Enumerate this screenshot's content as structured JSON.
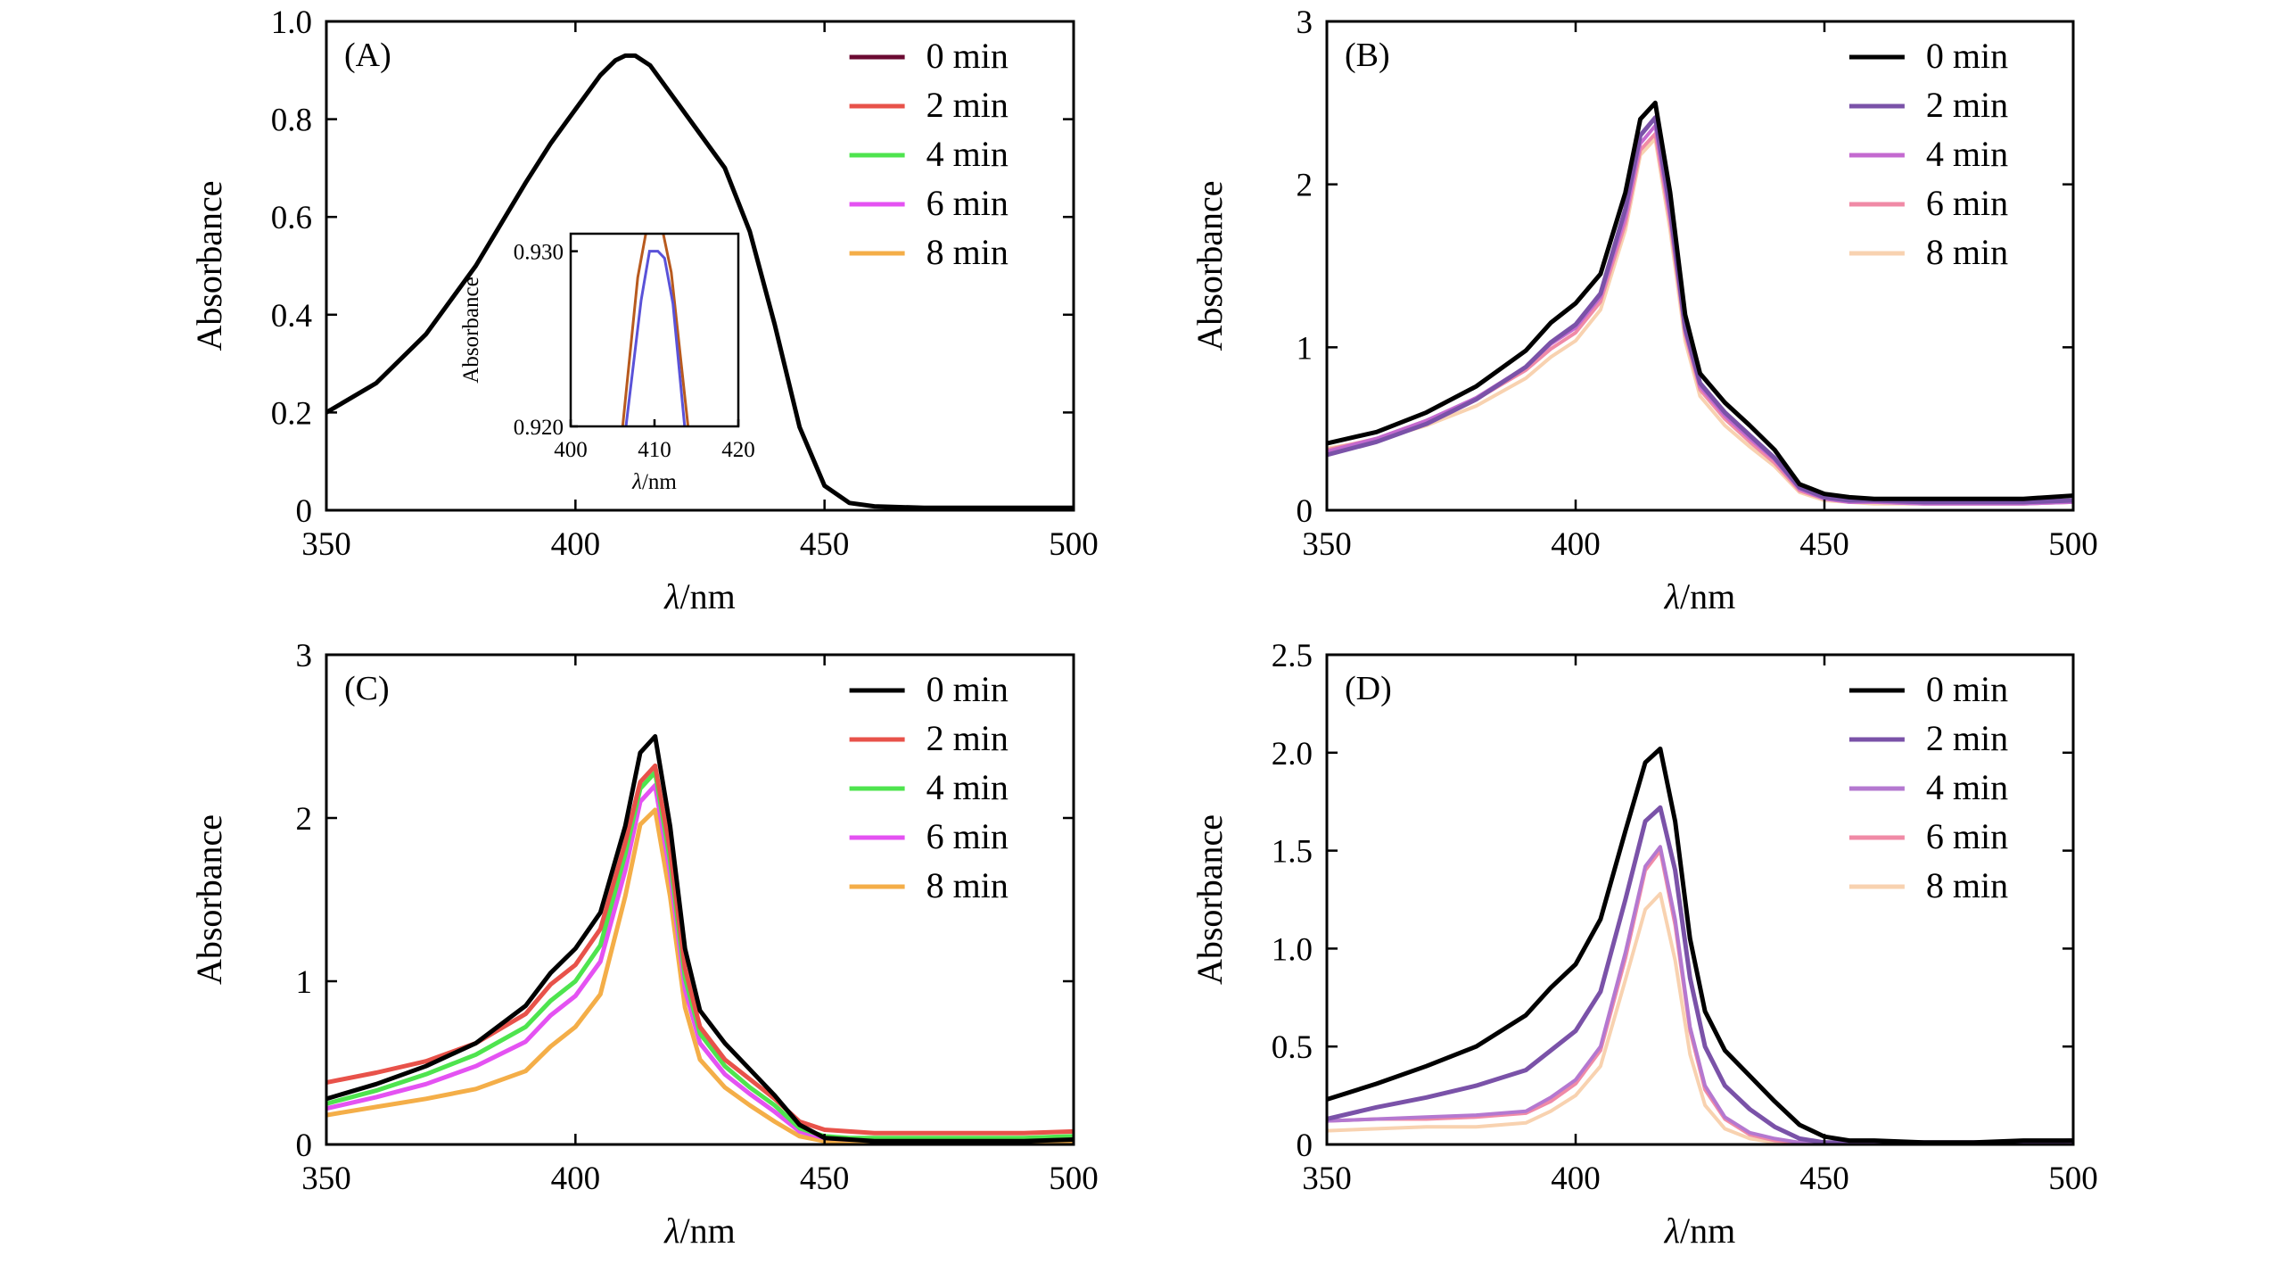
{
  "chart_data": [
    {
      "panel": "(A)",
      "type": "line",
      "xlabel_italic": "λ",
      "xlabel_unit": "/nm",
      "ylabel": "Absorbance",
      "xlim": [
        350,
        500
      ],
      "ylim": [
        0,
        1.0
      ],
      "xticks": [
        350,
        400,
        450,
        500
      ],
      "xtick_labels": [
        "350",
        "400",
        "450",
        "500"
      ],
      "yticks": [
        0,
        0.2,
        0.4,
        0.6,
        0.8,
        1.0
      ],
      "ytick_labels": [
        "0",
        "0.2",
        "0.4",
        "0.6",
        "0.8",
        "1.0"
      ],
      "legend_position": "top-right",
      "series": [
        {
          "name": "0 min",
          "color": "#6b0a32",
          "width": 5
        },
        {
          "name": "2 min",
          "color": "#e8524a",
          "width": 5
        },
        {
          "name": "4 min",
          "color": "#4ee44e",
          "width": 5
        },
        {
          "name": "6 min",
          "color": "#e452f2",
          "width": 5
        },
        {
          "name": "8 min",
          "color": "#f4ae48",
          "width": 5
        }
      ],
      "plotted_series_color": "#000000",
      "x": [
        350,
        360,
        370,
        380,
        390,
        395,
        400,
        405,
        408,
        410,
        412,
        415,
        420,
        425,
        430,
        435,
        440,
        445,
        450,
        455,
        460,
        470,
        480,
        490,
        500
      ],
      "y": [
        0.2,
        0.26,
        0.36,
        0.5,
        0.67,
        0.75,
        0.82,
        0.89,
        0.92,
        0.93,
        0.93,
        0.91,
        0.84,
        0.77,
        0.7,
        0.57,
        0.38,
        0.17,
        0.05,
        0.015,
        0.008,
        0.005,
        0.005,
        0.005,
        0.005
      ],
      "inset": {
        "xlabel_italic": "λ",
        "xlabel_unit": "/nm",
        "ylabel": "Absorbance",
        "xlim": [
          400,
          420
        ],
        "ylim": [
          0.92,
          0.931
        ],
        "xticks": [
          400,
          410,
          420
        ],
        "xtick_labels": [
          "400",
          "410",
          "420"
        ],
        "yticks": [
          0.92,
          0.93
        ],
        "ytick_labels": [
          "0.920",
          "0.930"
        ],
        "series": [
          {
            "name": "8 min",
            "color": "#b85a1e",
            "x": [
              406.2,
              408.0,
              409.0,
              410.0,
              411.0,
              412.0,
              414.0
            ],
            "y": [
              0.92,
              0.9285,
              0.9311,
              0.9311,
              0.9311,
              0.9288,
              0.92
            ]
          },
          {
            "name": "6 min",
            "color": "#5a52d8",
            "x": [
              406.6,
              408.4,
              409.4,
              410.4,
              411.2,
              412.2,
              413.6
            ],
            "y": [
              0.92,
              0.9272,
              0.93,
              0.93,
              0.9296,
              0.927,
              0.92
            ]
          }
        ]
      }
    },
    {
      "panel": "(B)",
      "type": "line",
      "xlabel_italic": "λ",
      "xlabel_unit": "/nm",
      "ylabel": "Absorbance",
      "xlim": [
        350,
        500
      ],
      "ylim": [
        0,
        3
      ],
      "xticks": [
        350,
        400,
        450,
        500
      ],
      "xtick_labels": [
        "350",
        "400",
        "450",
        "500"
      ],
      "yticks": [
        0,
        1,
        2,
        3
      ],
      "ytick_labels": [
        "0",
        "1",
        "2",
        "3"
      ],
      "legend_position": "top-right",
      "x": [
        350,
        360,
        370,
        380,
        390,
        395,
        400,
        405,
        410,
        413,
        416,
        419,
        422,
        425,
        430,
        435,
        440,
        445,
        450,
        455,
        460,
        470,
        480,
        490,
        500
      ],
      "series": [
        {
          "name": "0 min",
          "color": "#000000",
          "width": 5,
          "y": [
            0.41,
            0.48,
            0.6,
            0.76,
            0.98,
            1.15,
            1.27,
            1.45,
            1.95,
            2.4,
            2.5,
            1.95,
            1.2,
            0.84,
            0.66,
            0.52,
            0.37,
            0.16,
            0.1,
            0.08,
            0.07,
            0.07,
            0.07,
            0.07,
            0.09
          ]
        },
        {
          "name": "2 min",
          "color": "#7a52a8",
          "width": 5,
          "y": [
            0.34,
            0.42,
            0.53,
            0.68,
            0.88,
            1.03,
            1.14,
            1.33,
            1.85,
            2.3,
            2.41,
            1.85,
            1.12,
            0.78,
            0.6,
            0.46,
            0.32,
            0.14,
            0.08,
            0.06,
            0.06,
            0.05,
            0.05,
            0.05,
            0.06
          ]
        },
        {
          "name": "4 min",
          "color": "#c46ad0",
          "width": 4,
          "y": [
            0.36,
            0.44,
            0.55,
            0.69,
            0.88,
            1.02,
            1.12,
            1.31,
            1.8,
            2.25,
            2.36,
            1.8,
            1.1,
            0.76,
            0.58,
            0.44,
            0.31,
            0.13,
            0.07,
            0.05,
            0.05,
            0.04,
            0.04,
            0.04,
            0.05
          ]
        },
        {
          "name": "6 min",
          "color": "#f08aa6",
          "width": 4,
          "y": [
            0.37,
            0.44,
            0.55,
            0.68,
            0.86,
            0.99,
            1.09,
            1.28,
            1.76,
            2.21,
            2.31,
            1.77,
            1.08,
            0.74,
            0.56,
            0.42,
            0.29,
            0.12,
            0.07,
            0.05,
            0.05,
            0.04,
            0.04,
            0.04,
            0.05
          ]
        },
        {
          "name": "8 min",
          "color": "#f8d2b0",
          "width": 4,
          "y": [
            0.38,
            0.43,
            0.52,
            0.64,
            0.81,
            0.94,
            1.04,
            1.23,
            1.72,
            2.18,
            2.28,
            1.72,
            1.04,
            0.7,
            0.52,
            0.39,
            0.27,
            0.11,
            0.06,
            0.05,
            0.04,
            0.04,
            0.04,
            0.04,
            0.05
          ]
        }
      ]
    },
    {
      "panel": "(C)",
      "type": "line",
      "xlabel_italic": "λ",
      "xlabel_unit": "/nm",
      "ylabel": "Absorbance",
      "xlim": [
        350,
        500
      ],
      "ylim": [
        0,
        3
      ],
      "xticks": [
        350,
        400,
        450,
        500
      ],
      "xtick_labels": [
        "350",
        "400",
        "450",
        "500"
      ],
      "yticks": [
        0,
        1,
        2,
        3
      ],
      "ytick_labels": [
        "0",
        "1",
        "2",
        "3"
      ],
      "legend_position": "top-right",
      "x": [
        350,
        360,
        370,
        380,
        390,
        395,
        400,
        405,
        410,
        413,
        416,
        419,
        422,
        425,
        430,
        435,
        440,
        445,
        450,
        455,
        460,
        470,
        480,
        490,
        500
      ],
      "series": [
        {
          "name": "0 min",
          "color": "#000000",
          "width": 5,
          "y": [
            0.28,
            0.37,
            0.48,
            0.62,
            0.85,
            1.05,
            1.2,
            1.42,
            1.95,
            2.4,
            2.5,
            1.95,
            1.2,
            0.82,
            0.62,
            0.46,
            0.3,
            0.12,
            0.04,
            0.03,
            0.02,
            0.02,
            0.02,
            0.02,
            0.03
          ]
        },
        {
          "name": "2 min",
          "color": "#e8524a",
          "width": 5,
          "y": [
            0.38,
            0.44,
            0.51,
            0.62,
            0.8,
            0.98,
            1.1,
            1.32,
            1.85,
            2.22,
            2.32,
            1.8,
            1.08,
            0.72,
            0.52,
            0.4,
            0.28,
            0.14,
            0.09,
            0.08,
            0.07,
            0.07,
            0.07,
            0.07,
            0.08
          ]
        },
        {
          "name": "4 min",
          "color": "#4ee44e",
          "width": 5,
          "y": [
            0.25,
            0.33,
            0.43,
            0.55,
            0.72,
            0.88,
            1.0,
            1.22,
            1.78,
            2.18,
            2.28,
            1.74,
            1.02,
            0.68,
            0.48,
            0.35,
            0.24,
            0.1,
            0.05,
            0.04,
            0.04,
            0.04,
            0.04,
            0.04,
            0.05
          ]
        },
        {
          "name": "6 min",
          "color": "#e452f2",
          "width": 5,
          "y": [
            0.22,
            0.29,
            0.37,
            0.48,
            0.63,
            0.79,
            0.91,
            1.12,
            1.68,
            2.1,
            2.2,
            1.66,
            0.95,
            0.62,
            0.43,
            0.31,
            0.2,
            0.08,
            0.04,
            0.03,
            0.03,
            0.03,
            0.03,
            0.03,
            0.04
          ]
        },
        {
          "name": "8 min",
          "color": "#f4ae48",
          "width": 5,
          "y": [
            0.18,
            0.23,
            0.28,
            0.34,
            0.45,
            0.6,
            0.72,
            0.92,
            1.52,
            1.96,
            2.05,
            1.52,
            0.84,
            0.52,
            0.35,
            0.24,
            0.14,
            0.05,
            0.02,
            0.02,
            0.02,
            0.02,
            0.02,
            0.02,
            0.02
          ]
        }
      ]
    },
    {
      "panel": "(D)",
      "type": "line",
      "xlabel_italic": "λ",
      "xlabel_unit": "/nm",
      "ylabel": "Absorbance",
      "xlim": [
        350,
        500
      ],
      "ylim": [
        0,
        2.5
      ],
      "xticks": [
        350,
        400,
        450,
        500
      ],
      "xtick_labels": [
        "350",
        "400",
        "450",
        "500"
      ],
      "yticks": [
        0,
        0.5,
        1.0,
        1.5,
        2.0,
        2.5
      ],
      "ytick_labels": [
        "0",
        "0.5",
        "1.0",
        "1.5",
        "2.0",
        "2.5"
      ],
      "legend_position": "top-right",
      "x": [
        350,
        360,
        370,
        380,
        390,
        395,
        400,
        405,
        410,
        414,
        417,
        420,
        423,
        426,
        430,
        435,
        440,
        445,
        450,
        455,
        460,
        470,
        480,
        490,
        500
      ],
      "series": [
        {
          "name": "0 min",
          "color": "#000000",
          "width": 5,
          "y": [
            0.23,
            0.31,
            0.4,
            0.5,
            0.66,
            0.8,
            0.92,
            1.15,
            1.6,
            1.95,
            2.02,
            1.65,
            1.05,
            0.68,
            0.48,
            0.35,
            0.22,
            0.1,
            0.04,
            0.02,
            0.02,
            0.01,
            0.01,
            0.02,
            0.02
          ]
        },
        {
          "name": "2 min",
          "color": "#7a52a8",
          "width": 5,
          "y": [
            0.13,
            0.19,
            0.24,
            0.3,
            0.38,
            0.48,
            0.58,
            0.78,
            1.25,
            1.65,
            1.72,
            1.4,
            0.85,
            0.5,
            0.3,
            0.18,
            0.09,
            0.03,
            0.01,
            0.01,
            0.01,
            0.01,
            0.01,
            0.01,
            0.02
          ]
        },
        {
          "name": "4 min",
          "color": "#b478d0",
          "width": 4,
          "y": [
            0.12,
            0.13,
            0.14,
            0.15,
            0.17,
            0.24,
            0.33,
            0.5,
            0.98,
            1.42,
            1.52,
            1.15,
            0.6,
            0.3,
            0.14,
            0.06,
            0.03,
            0.01,
            0.01,
            0.01,
            0.01,
            0.01,
            0.01,
            0.01,
            0.01
          ]
        },
        {
          "name": "6 min",
          "color": "#f08aa6",
          "width": 4,
          "y": [
            0.12,
            0.13,
            0.13,
            0.14,
            0.16,
            0.22,
            0.31,
            0.48,
            0.95,
            1.4,
            1.5,
            1.12,
            0.58,
            0.28,
            0.13,
            0.05,
            0.02,
            0.01,
            0.01,
            0.01,
            0.01,
            0.01,
            0.01,
            0.01,
            0.01
          ]
        },
        {
          "name": "8 min",
          "color": "#f8d2b0",
          "width": 4,
          "y": [
            0.07,
            0.08,
            0.09,
            0.09,
            0.11,
            0.17,
            0.25,
            0.4,
            0.84,
            1.2,
            1.28,
            0.94,
            0.46,
            0.2,
            0.08,
            0.03,
            0.01,
            0.01,
            0.01,
            0.01,
            0.01,
            0.01,
            0.01,
            0.01,
            0.01
          ]
        }
      ]
    }
  ]
}
